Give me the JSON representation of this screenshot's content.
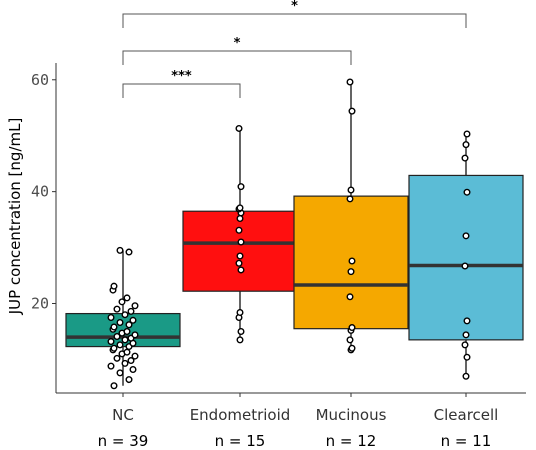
{
  "chart_data": {
    "type": "box",
    "ylabel": "JUP concentration [ng/mL]",
    "ylim": [
      4,
      63
    ],
    "yticks": [
      20,
      40,
      60
    ],
    "groups": [
      {
        "name": "NC",
        "n_label": "n = 39",
        "color": "#1a9a86",
        "q1": 12.3,
        "median": 14.0,
        "q3": 18.2,
        "whisker_low": 5.3,
        "whisker_high": 29.5,
        "points": [
          29.5,
          29.2,
          23.1,
          22.4,
          21.0,
          20.3,
          19.6,
          19.0,
          18.6,
          18.0,
          17.5,
          17.0,
          16.6,
          16.2,
          15.8,
          15.4,
          15.0,
          14.7,
          14.4,
          14.1,
          13.8,
          13.5,
          13.2,
          12.9,
          12.6,
          12.3,
          12.0,
          11.7,
          11.3,
          11.0,
          10.6,
          10.2,
          9.8,
          9.3,
          8.8,
          8.2,
          7.6,
          6.4,
          5.3
        ]
      },
      {
        "name": "Endometrioid",
        "n_label": "n = 15",
        "color": "#ff0f0f",
        "q1": 22.2,
        "median": 30.8,
        "q3": 36.5,
        "whisker_low": 13.5,
        "whisker_high": 51.3,
        "points": [
          51.3,
          40.9,
          37.1,
          36.9,
          36.2,
          35.2,
          33.1,
          31.0,
          28.5,
          27.2,
          26.0,
          18.4,
          17.5,
          15.0,
          13.5
        ]
      },
      {
        "name": "Mucinous",
        "n_label": "n = 12",
        "color": "#f5a800",
        "q1": 15.5,
        "median": 23.3,
        "q3": 39.2,
        "whisker_low": 11.7,
        "whisker_high": 59.6,
        "points": [
          59.6,
          54.4,
          40.3,
          38.7,
          27.6,
          25.7,
          21.2,
          15.7,
          15.2,
          13.5,
          12.0,
          11.7
        ]
      },
      {
        "name": "Clearcell",
        "n_label": "n = 11",
        "color": "#5bbcd6",
        "q1": 13.5,
        "median": 26.8,
        "q3": 42.9,
        "whisker_low": 7.0,
        "whisker_high": 50.3,
        "points": [
          50.3,
          48.4,
          46.0,
          39.9,
          32.1,
          26.7,
          16.9,
          14.4,
          12.6,
          10.4,
          7.0
        ]
      }
    ],
    "comparisons": [
      {
        "from": 0,
        "to": 1,
        "label": "***"
      },
      {
        "from": 0,
        "to": 2,
        "label": "*"
      },
      {
        "from": 0,
        "to": 3,
        "label": "*"
      }
    ]
  }
}
